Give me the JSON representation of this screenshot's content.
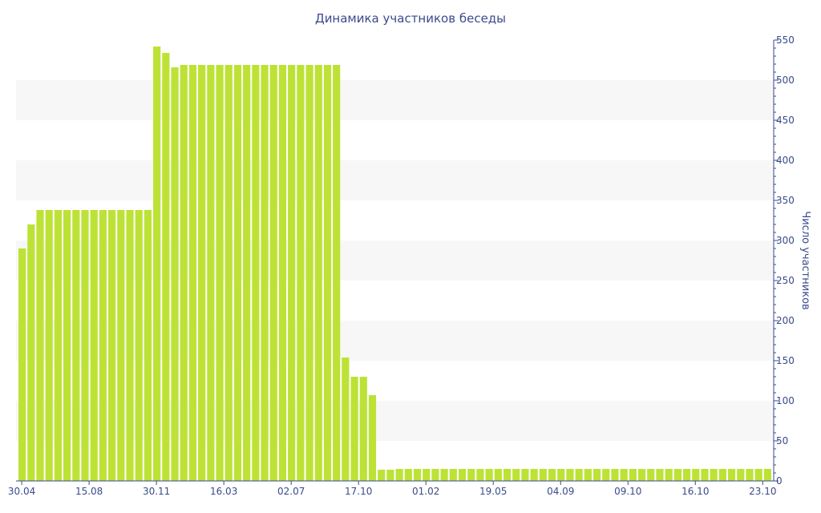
{
  "chart_data": {
    "type": "bar",
    "title": "Динамика участников беседы",
    "xlabel": "",
    "ylabel": "Число участников",
    "ylim": [
      0,
      550
    ],
    "y_ticks": [
      0,
      50,
      100,
      150,
      200,
      250,
      300,
      350,
      400,
      450,
      500,
      550
    ],
    "y_axis_side": "right",
    "grid": "alternating horizontal bands",
    "x_tick_labels": [
      "30.04",
      "15.08",
      "30.11",
      "16.03",
      "02.07",
      "17.10",
      "01.02",
      "19.05",
      "04.09",
      "09.10",
      "16.10",
      "23.10"
    ],
    "values": [
      290,
      320,
      338,
      338,
      338,
      338,
      338,
      338,
      338,
      338,
      338,
      338,
      338,
      338,
      338,
      542,
      534,
      516,
      519,
      519,
      519,
      519,
      519,
      519,
      519,
      519,
      519,
      519,
      519,
      519,
      519,
      519,
      519,
      519,
      519,
      519,
      154,
      130,
      130,
      107,
      14,
      14,
      15,
      15,
      15,
      15,
      15,
      15,
      15,
      15,
      15,
      15,
      15,
      15,
      15,
      15,
      15,
      15,
      15,
      15,
      15,
      15,
      15,
      15,
      15,
      15,
      15,
      15,
      15,
      15,
      15,
      15,
      15,
      15,
      15,
      15,
      15,
      15,
      15,
      15,
      15,
      15,
      15,
      15
    ]
  },
  "colors": {
    "bar": "#bde236",
    "band": "#f7f7f7",
    "axis": "#3b4a8c"
  }
}
